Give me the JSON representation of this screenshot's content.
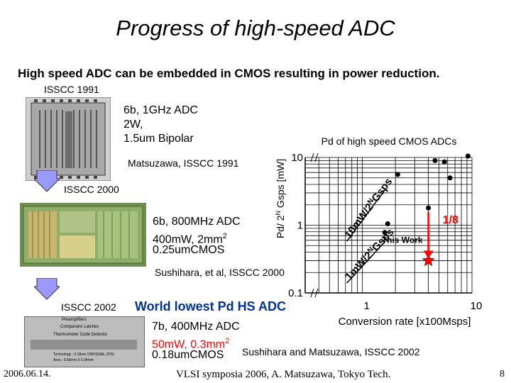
{
  "slide": {
    "title": "Progress of high-speed ADC",
    "subtitle": "High speed ADC can be embedded in CMOS resulting in power reduction.",
    "footer": {
      "date": "2006.06.14.",
      "venue": "VLSI symposia 2006,  A. Matsuzawa, Tokyo Tech.",
      "page": "8"
    }
  },
  "chips": {
    "isscc1991": {
      "label": "ISSCC 1991",
      "spec_lines": [
        "6b, 1GHz ADC",
        "2W,",
        "1.5um Bipolar"
      ],
      "author": "Matsuzawa, ISSCC 1991"
    },
    "isscc2000": {
      "label": "ISSCC 2000",
      "spec_lines": [
        "6b, 800MHz ADC",
        "400mW, 2mm",
        "0.25umCMOS"
      ],
      "superscript": "2",
      "author": "Sushihara, et al, ISSCC 2000"
    },
    "isscc2002": {
      "label": "ISSCC 2002",
      "headline": "World lowest Pd HS ADC",
      "spec_line1": "7b, 400MHz ADC",
      "spec_line2": "50mW, 0.3mm",
      "spec_line2_sup": "2",
      "spec_line3": "0.18umCMOS",
      "author": "Sushihara and Matsuzawa, ISSCC 2002",
      "die_texts": [
        "Preamplifiers",
        "Comparator Latches",
        "Thermometer Code Detector"
      ],
      "die_tech": "Technology : 0.18um CMOS(3AL,1PS)",
      "die_area": "Area : 0.56mm X 0.34mm"
    }
  },
  "chart_data": {
    "type": "scatter",
    "title": "Pd of high speed CMOS ADCs",
    "xlabel": "Conversion rate [x100Msps]",
    "ylabel_parts": [
      "Pd/ 2",
      "N",
      " Gsps [mW]"
    ],
    "x_scale": "log",
    "y_scale": "log",
    "xlim": [
      0.3,
      10
    ],
    "ylim": [
      0.1,
      10
    ],
    "x_ticks": [
      {
        "v": 1,
        "label": "1"
      },
      {
        "v": 10,
        "label": "10"
      }
    ],
    "y_ticks": [
      {
        "v": 0.1,
        "label": "0.1"
      },
      {
        "v": 1,
        "label": "1"
      },
      {
        "v": 10,
        "label": "10"
      }
    ],
    "grid": true,
    "points": [
      {
        "x": 2.1,
        "y": 5.6
      },
      {
        "x": 4.6,
        "y": 9.0
      },
      {
        "x": 5.6,
        "y": 8.6
      },
      {
        "x": 6.3,
        "y": 5.0
      },
      {
        "x": 9.2,
        "y": 10.5
      },
      {
        "x": 4.0,
        "y": 1.8
      },
      {
        "x": 1.7,
        "y": 1.05
      },
      {
        "x": 1.6,
        "y": 0.78
      }
    ],
    "highlight": {
      "x": 4.0,
      "y": 0.3,
      "label": "This Work"
    },
    "trend_lines": [
      {
        "label": "10mW/2Nx Gsps",
        "start": [
          0.72,
          0.58
        ],
        "end": [
          1.62,
          3.4
        ]
      },
      {
        "label": "1mW/2Nx Gsps",
        "start": [
          0.72,
          0.14
        ],
        "end": [
          1.62,
          0.58
        ]
      }
    ],
    "trend_text": {
      "upper": {
        "main": "10mW/2",
        "sup": "N",
        "rest": "Gsps"
      },
      "lower": {
        "main": "1mW/2",
        "sup": "N",
        "rest": "Gsps"
      }
    },
    "annotation": "1/8"
  }
}
